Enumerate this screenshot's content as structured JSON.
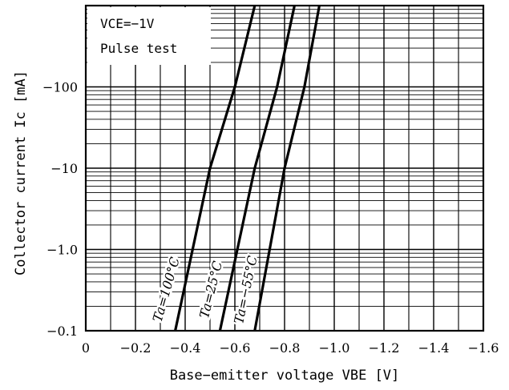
{
  "chart_data": {
    "type": "line",
    "title": "",
    "xlabel": "Base−emitter voltage VBE [V]",
    "ylabel": "Collector current Ic [mA]",
    "x_scale": "linear",
    "y_scale": "log",
    "xlim": [
      0,
      -1.6
    ],
    "ylim": [
      -0.1,
      -1000
    ],
    "grid": true,
    "x_ticks": [
      "0",
      "−0.2",
      "−0.4",
      "−0.6",
      "−0.8",
      "−1.0",
      "−1.2",
      "−1.4",
      "−1.6"
    ],
    "y_ticks": [
      "−0.1",
      "−1.0",
      "−10",
      "−100"
    ],
    "annotations": [
      "VCE=−1V",
      "Pulse test"
    ],
    "series": [
      {
        "name": "Ta=100°C",
        "x": [
          -0.36,
          -0.5,
          -0.6,
          -0.68
        ],
        "y": [
          -0.1,
          -10,
          -100,
          -1000
        ]
      },
      {
        "name": "Ta=25°C",
        "x": [
          -0.54,
          -0.68,
          -0.77,
          -0.84
        ],
        "y": [
          -0.1,
          -10,
          -100,
          -1000
        ]
      },
      {
        "name": "Ta=−55°C",
        "x": [
          -0.68,
          -0.8,
          -0.88,
          -0.94
        ],
        "y": [
          -0.1,
          -10,
          -100,
          -1000
        ]
      }
    ]
  }
}
